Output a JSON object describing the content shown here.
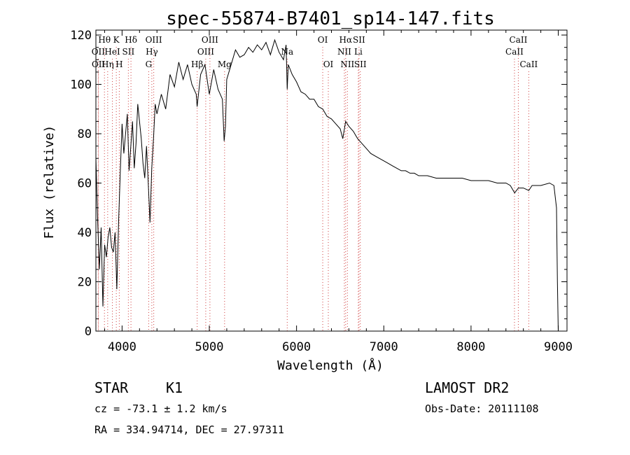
{
  "chart_data": {
    "type": "line",
    "title": "spec-55874-B7401_sp14-147.fits",
    "xlabel": "Wavelength (Å)",
    "ylabel": "Flux (relative)",
    "xlim": [
      3700,
      9100
    ],
    "ylim": [
      0,
      122
    ],
    "x_ticks": [
      4000,
      5000,
      6000,
      7000,
      8000,
      9000
    ],
    "y_ticks": [
      0,
      20,
      40,
      60,
      80,
      100,
      120
    ],
    "x_tick_labels": [
      "4000",
      "5000",
      "6000",
      "7000",
      "8000",
      "9000"
    ],
    "y_tick_labels": [
      "0",
      "20",
      "40",
      "60",
      "80",
      "100",
      "120"
    ],
    "series": [
      {
        "name": "flux",
        "x": [
          3700,
          3720,
          3740,
          3760,
          3780,
          3800,
          3820,
          3840,
          3860,
          3880,
          3900,
          3920,
          3940,
          3960,
          3980,
          4000,
          4020,
          4040,
          4060,
          4080,
          4100,
          4120,
          4140,
          4160,
          4180,
          4200,
          4220,
          4240,
          4260,
          4280,
          4300,
          4320,
          4340,
          4360,
          4380,
          4400,
          4450,
          4500,
          4550,
          4600,
          4650,
          4700,
          4750,
          4800,
          4850,
          4860,
          4900,
          4950,
          5000,
          5050,
          5100,
          5150,
          5170,
          5185,
          5200,
          5250,
          5300,
          5350,
          5400,
          5450,
          5500,
          5550,
          5600,
          5650,
          5700,
          5750,
          5800,
          5850,
          5880,
          5893,
          5905,
          5950,
          6000,
          6050,
          6100,
          6150,
          6200,
          6250,
          6300,
          6350,
          6400,
          6450,
          6500,
          6530,
          6563,
          6600,
          6650,
          6700,
          6750,
          6800,
          6850,
          6900,
          6950,
          7000,
          7050,
          7100,
          7150,
          7200,
          7250,
          7300,
          7350,
          7400,
          7450,
          7500,
          7600,
          7700,
          7800,
          7900,
          8000,
          8100,
          8200,
          8300,
          8400,
          8450,
          8500,
          8542,
          8600,
          8662,
          8700,
          8800,
          8900,
          8950,
          8980,
          8990,
          9000
        ],
        "values": [
          70,
          45,
          25,
          42,
          10,
          35,
          30,
          38,
          42,
          34,
          32,
          40,
          17,
          44,
          65,
          84,
          72,
          80,
          88,
          65,
          75,
          85,
          66,
          76,
          92,
          85,
          78,
          68,
          62,
          75,
          60,
          44,
          66,
          78,
          92,
          88,
          96,
          90,
          104,
          99,
          109,
          102,
          108,
          100,
          96,
          91,
          104,
          108,
          96,
          106,
          98,
          94,
          77,
          83,
          102,
          108,
          114,
          111,
          112,
          115,
          113,
          116,
          114,
          117,
          112,
          118,
          113,
          110,
          116,
          98,
          108,
          104,
          101,
          97,
          96,
          94,
          94,
          91,
          90,
          87,
          86,
          84,
          82,
          78,
          85,
          83,
          81,
          78,
          76,
          74,
          72,
          71,
          70,
          69,
          68,
          67,
          66,
          65,
          65,
          64,
          64,
          63,
          63,
          63,
          62,
          62,
          62,
          62,
          61,
          61,
          61,
          60,
          60,
          59,
          56,
          58,
          58,
          57,
          59,
          59,
          60,
          59,
          50,
          20,
          0
        ]
      }
    ],
    "spectral_lines": [
      {
        "name": "Hθ",
        "wavelength": 3798,
        "row": 1
      },
      {
        "name": "K",
        "wavelength": 3934,
        "row": 1
      },
      {
        "name": "Hδ",
        "wavelength": 4102,
        "row": 1
      },
      {
        "name": "OIII",
        "wavelength": 4363,
        "row": 1
      },
      {
        "name": "OIII",
        "wavelength": 5007,
        "row": 1
      },
      {
        "name": "OI",
        "wavelength": 6300,
        "row": 1
      },
      {
        "name": "Hα",
        "wavelength": 6563,
        "row": 1
      },
      {
        "name": "SII",
        "wavelength": 6716,
        "row": 1
      },
      {
        "name": "CaII",
        "wavelength": 8542,
        "row": 1
      },
      {
        "name": "OII",
        "wavelength": 3727,
        "row": 2
      },
      {
        "name": "HeI",
        "wavelength": 3889,
        "row": 2
      },
      {
        "name": "SII",
        "wavelength": 4072,
        "row": 2
      },
      {
        "name": "Hγ",
        "wavelength": 4341,
        "row": 2
      },
      {
        "name": "OIII",
        "wavelength": 4959,
        "row": 2
      },
      {
        "name": "Na",
        "wavelength": 5893,
        "row": 2
      },
      {
        "name": "NII",
        "wavelength": 6548,
        "row": 2
      },
      {
        "name": "Li",
        "wavelength": 6708,
        "row": 2
      },
      {
        "name": "CaII",
        "wavelength": 8498,
        "row": 2
      },
      {
        "name": "OII",
        "wavelength": 3729,
        "row": 3
      },
      {
        "name": "Hη",
        "wavelength": 3835,
        "row": 3
      },
      {
        "name": "H",
        "wavelength": 3968,
        "row": 3
      },
      {
        "name": "G",
        "wavelength": 4305,
        "row": 3
      },
      {
        "name": "Hβ",
        "wavelength": 4861,
        "row": 3
      },
      {
        "name": "Mg",
        "wavelength": 5175,
        "row": 3
      },
      {
        "name": "OI",
        "wavelength": 6364,
        "row": 3
      },
      {
        "name": "NII",
        "wavelength": 6583,
        "row": 3
      },
      {
        "name": "SII",
        "wavelength": 6731,
        "row": 3
      },
      {
        "name": "CaII",
        "wavelength": 8662,
        "row": 3
      }
    ]
  },
  "info": {
    "object_class": "STAR",
    "subclass": "K1",
    "survey": "LAMOST DR2",
    "cz": "cz = -73.1 ± 1.2 km/s",
    "obs_date": "Obs-Date: 20111108",
    "coords": "RA = 334.94714, DEC =  27.97311"
  }
}
